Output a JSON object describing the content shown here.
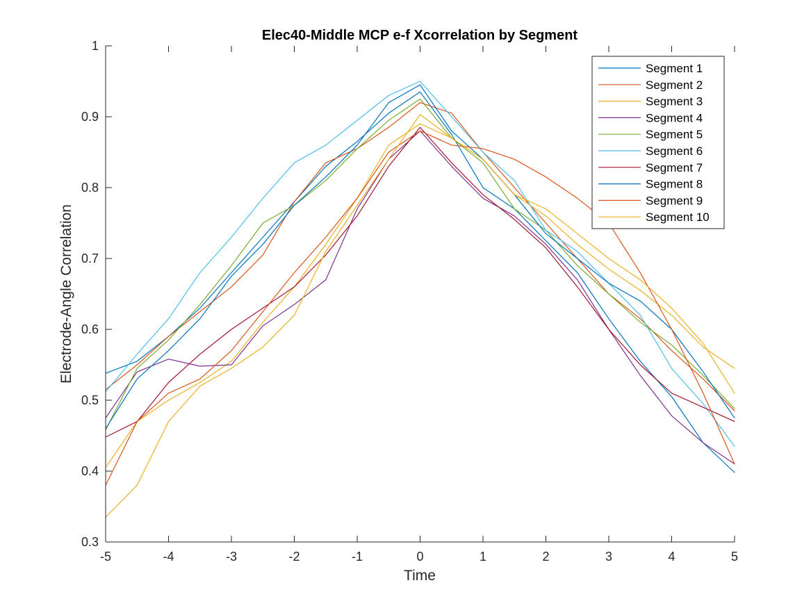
{
  "chart_data": {
    "type": "line",
    "title": "Elec40-Middle MCP e-f Xcorrelation by Segment",
    "xlabel": "Time",
    "ylabel": "Electrode-Angle Correlation",
    "xlim": [
      -5,
      5
    ],
    "ylim": [
      0.3,
      1
    ],
    "xticks": [
      "-5",
      "-4",
      "-3",
      "-2",
      "-1",
      "0",
      "1",
      "2",
      "3",
      "4",
      "5"
    ],
    "yticks": [
      "0.3",
      "0.4",
      "0.5",
      "0.6",
      "0.7",
      "0.8",
      "0.9",
      "1"
    ],
    "grid": false,
    "legend_position": "top-right",
    "x": [
      -5,
      -4.5,
      -4,
      -3.5,
      -3,
      -2.5,
      -2,
      -1.5,
      -1,
      -0.5,
      0,
      0.5,
      1,
      1.5,
      2,
      2.5,
      3,
      3.5,
      4,
      4.5,
      5
    ],
    "series": [
      {
        "name": "Segment 1",
        "color": "#0072BD",
        "values": [
          0.538,
          0.555,
          0.59,
          0.63,
          0.68,
          0.73,
          0.78,
          0.83,
          0.865,
          0.905,
          0.935,
          0.875,
          0.8,
          0.77,
          0.725,
          0.68,
          0.615,
          0.555,
          0.505,
          0.44,
          0.398
        ]
      },
      {
        "name": "Segment 2",
        "color": "#D95319",
        "values": [
          0.515,
          0.55,
          0.59,
          0.625,
          0.66,
          0.705,
          0.78,
          0.835,
          0.855,
          0.885,
          0.92,
          0.905,
          0.85,
          0.8,
          0.75,
          0.7,
          0.65,
          0.615,
          0.57,
          0.53,
          0.485
        ]
      },
      {
        "name": "Segment 3",
        "color": "#EDB120",
        "values": [
          0.405,
          0.47,
          0.5,
          0.525,
          0.555,
          0.61,
          0.66,
          0.72,
          0.785,
          0.86,
          0.89,
          0.87,
          0.84,
          0.79,
          0.76,
          0.72,
          0.685,
          0.655,
          0.62,
          0.575,
          0.545
        ]
      },
      {
        "name": "Segment 4",
        "color": "#7E2F8E",
        "values": [
          0.475,
          0.54,
          0.558,
          0.548,
          0.55,
          0.605,
          0.635,
          0.67,
          0.77,
          0.84,
          0.88,
          0.83,
          0.785,
          0.76,
          0.72,
          0.67,
          0.6,
          0.535,
          0.478,
          0.44,
          0.41
        ]
      },
      {
        "name": "Segment 5",
        "color": "#77AC30",
        "values": [
          0.458,
          0.545,
          0.585,
          0.635,
          0.69,
          0.75,
          0.775,
          0.81,
          0.855,
          0.895,
          0.925,
          0.87,
          0.835,
          0.77,
          0.74,
          0.69,
          0.65,
          0.61,
          0.578,
          0.535,
          0.488
        ]
      },
      {
        "name": "Segment 6",
        "color": "#4DBEEE",
        "values": [
          0.512,
          0.565,
          0.615,
          0.68,
          0.73,
          0.785,
          0.835,
          0.86,
          0.895,
          0.93,
          0.95,
          0.9,
          0.85,
          0.81,
          0.74,
          0.71,
          0.665,
          0.62,
          0.545,
          0.495,
          0.435
        ]
      },
      {
        "name": "Segment 7",
        "color": "#A2142F",
        "values": [
          0.448,
          0.47,
          0.525,
          0.565,
          0.6,
          0.63,
          0.66,
          0.705,
          0.76,
          0.83,
          0.885,
          0.835,
          0.79,
          0.755,
          0.715,
          0.66,
          0.6,
          0.55,
          0.51,
          0.49,
          0.47
        ]
      },
      {
        "name": "Segment 8",
        "color": "#0072BD",
        "values": [
          0.46,
          0.53,
          0.57,
          0.615,
          0.675,
          0.72,
          0.775,
          0.815,
          0.86,
          0.92,
          0.945,
          0.88,
          0.84,
          0.79,
          0.735,
          0.7,
          0.665,
          0.64,
          0.6,
          0.54,
          0.475
        ]
      },
      {
        "name": "Segment 9",
        "color": "#D95319",
        "values": [
          0.38,
          0.47,
          0.51,
          0.53,
          0.57,
          0.625,
          0.68,
          0.73,
          0.785,
          0.85,
          0.88,
          0.86,
          0.855,
          0.84,
          0.815,
          0.785,
          0.75,
          0.68,
          0.6,
          0.51,
          0.41
        ]
      },
      {
        "name": "Segment 10",
        "color": "#EDB120",
        "values": [
          0.335,
          0.38,
          0.47,
          0.52,
          0.545,
          0.575,
          0.62,
          0.71,
          0.775,
          0.84,
          0.903,
          0.87,
          0.84,
          0.79,
          0.77,
          0.735,
          0.7,
          0.67,
          0.63,
          0.58,
          0.51
        ]
      }
    ]
  }
}
